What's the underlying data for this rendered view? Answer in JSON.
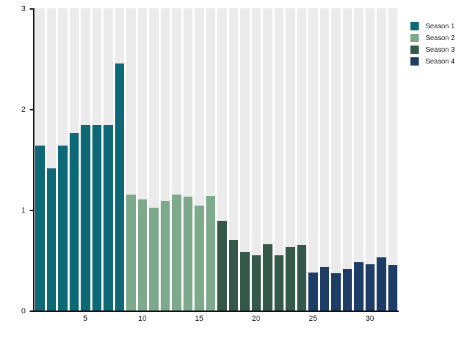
{
  "figure": {
    "background_color": "#ffffff",
    "track_color": "#ebebeb",
    "axis_color": "#111111",
    "text_color": "#1a1a1a"
  },
  "legend": {
    "position": "top-right",
    "items": [
      {
        "label": "Season 1",
        "color": "#0d6976"
      },
      {
        "label": "Season 2",
        "color": "#7ea98d"
      },
      {
        "label": "Season 3",
        "color": "#34584a"
      },
      {
        "label": "Season 4",
        "color": "#1e3d66"
      }
    ]
  },
  "chart_data": {
    "type": "bar",
    "title": "",
    "xlabel": "",
    "ylabel": "",
    "ylim": [
      0,
      3
    ],
    "y_ticks": [
      0,
      1,
      2,
      3
    ],
    "x_ticks": [
      5,
      10,
      15,
      20,
      25,
      30
    ],
    "n_bars": 32,
    "grid": false,
    "background_tracks": true,
    "legend_position": "top-right",
    "series": [
      {
        "name": "Season 1",
        "color": "#0d6976",
        "x": [
          1,
          2,
          3,
          4,
          5,
          6,
          7,
          8
        ],
        "values": [
          1.64,
          1.41,
          1.64,
          1.76,
          1.84,
          1.84,
          1.84,
          2.45
        ]
      },
      {
        "name": "Season 2",
        "color": "#7ea98d",
        "x": [
          9,
          10,
          11,
          12,
          13,
          14,
          15,
          16
        ],
        "values": [
          1.15,
          1.1,
          1.02,
          1.09,
          1.15,
          1.13,
          1.04,
          1.14
        ]
      },
      {
        "name": "Season 3",
        "color": "#34584a",
        "x": [
          17,
          18,
          19,
          20,
          21,
          22,
          23,
          24
        ],
        "values": [
          0.89,
          0.7,
          0.58,
          0.55,
          0.66,
          0.55,
          0.63,
          0.65
        ]
      },
      {
        "name": "Season 4",
        "color": "#1e3d66",
        "x": [
          25,
          26,
          27,
          28,
          29,
          30,
          31,
          32
        ],
        "values": [
          0.38,
          0.43,
          0.37,
          0.41,
          0.48,
          0.46,
          0.53,
          0.45
        ]
      }
    ]
  }
}
